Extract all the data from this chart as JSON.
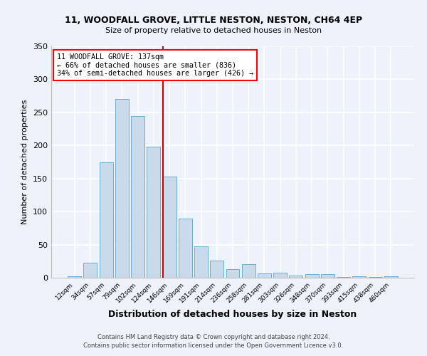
{
  "title1": "11, WOODFALL GROVE, LITTLE NESTON, NESTON, CH64 4EP",
  "title2": "Size of property relative to detached houses in Neston",
  "xlabel": "Distribution of detached houses by size in Neston",
  "ylabel": "Number of detached properties",
  "categories": [
    "12sqm",
    "34sqm",
    "57sqm",
    "79sqm",
    "102sqm",
    "124sqm",
    "146sqm",
    "169sqm",
    "191sqm",
    "214sqm",
    "236sqm",
    "258sqm",
    "281sqm",
    "303sqm",
    "326sqm",
    "348sqm",
    "370sqm",
    "393sqm",
    "415sqm",
    "438sqm",
    "460sqm"
  ],
  "values": [
    2,
    23,
    175,
    270,
    245,
    198,
    153,
    89,
    47,
    26,
    13,
    20,
    7,
    8,
    3,
    5,
    5,
    1,
    2,
    1,
    2
  ],
  "bar_color": "#c9daea",
  "bar_edge_color": "#6aaed6",
  "background_color": "#eef2fb",
  "grid_color": "#ffffff",
  "vline_color": "#cc0000",
  "vline_x": 5.59,
  "annotation_lines": [
    "11 WOODFALL GROVE: 137sqm",
    "← 66% of detached houses are smaller (836)",
    "34% of semi-detached houses are larger (426) →"
  ],
  "footer1": "Contains HM Land Registry data © Crown copyright and database right 2024.",
  "footer2": "Contains public sector information licensed under the Open Government Licence v3.0.",
  "ylim": [
    0,
    350
  ],
  "yticks": [
    0,
    50,
    100,
    150,
    200,
    250,
    300,
    350
  ]
}
